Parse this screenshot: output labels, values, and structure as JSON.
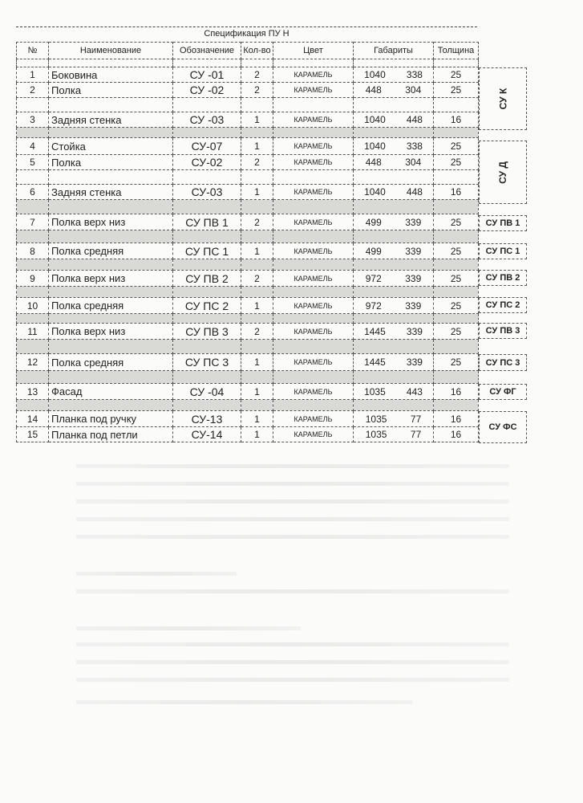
{
  "title": "Спецификация ПУ Н",
  "headers": [
    "№",
    "Наименование",
    "Обозначение",
    "Кол-во",
    "Цвет",
    "Габариты",
    "Толщина"
  ],
  "rows": [
    {
      "kind": "blank"
    },
    {
      "kind": "item",
      "n": "1",
      "name": "Боковина",
      "code": "СУ -01",
      "qty": "2",
      "color": "КАРАМЕЛЬ",
      "w": "1040",
      "h": "338",
      "t": "25"
    },
    {
      "kind": "item",
      "n": "2",
      "name": "Полка",
      "code": "СУ -02",
      "qty": "2",
      "color": "КАРАМЕЛЬ",
      "w": "448",
      "h": "304",
      "t": "25"
    },
    {
      "kind": "blank"
    },
    {
      "kind": "item",
      "n": "3",
      "name": "Задняя стенка",
      "code": "СУ -03",
      "qty": "1",
      "color": "КАРАМЕЛЬ",
      "w": "1040",
      "h": "448",
      "t": "16"
    },
    {
      "kind": "gap"
    },
    {
      "kind": "item",
      "n": "4",
      "name": "Стойка",
      "code": "СУ-07",
      "qty": "1",
      "color": "КАРАМЕЛЬ",
      "w": "1040",
      "h": "338",
      "t": "25"
    },
    {
      "kind": "item",
      "n": "5",
      "name": "Полка",
      "code": "СУ-02",
      "qty": "2",
      "color": "КАРАМЕЛЬ",
      "w": "448",
      "h": "304",
      "t": "25"
    },
    {
      "kind": "blank"
    },
    {
      "kind": "item",
      "n": "6",
      "name": "Задняя стенка",
      "code": "СУ-03",
      "qty": "1",
      "color": "КАРАМЕЛЬ",
      "w": "1040",
      "h": "448",
      "t": "16"
    },
    {
      "kind": "gap"
    },
    {
      "kind": "item",
      "n": "7",
      "name": "Полка верх низ",
      "code": "СУ ПВ 1",
      "qty": "2",
      "color": "КАРАМЕЛЬ",
      "w": "499",
      "h": "339",
      "t": "25"
    },
    {
      "kind": "gap"
    },
    {
      "kind": "item",
      "n": "8",
      "name": "Полка средняя",
      "code": "СУ ПС 1",
      "qty": "1",
      "color": "КАРАМЕЛЬ",
      "w": "499",
      "h": "339",
      "t": "25"
    },
    {
      "kind": "gap"
    },
    {
      "kind": "item",
      "n": "9",
      "name": "Полка верх низ",
      "code": "СУ ПВ 2",
      "qty": "2",
      "color": "КАРАМЕЛЬ",
      "w": "972",
      "h": "339",
      "t": "25"
    },
    {
      "kind": "gap"
    },
    {
      "kind": "item",
      "n": "10",
      "name": "Полка средняя",
      "code": "СУ ПС 2",
      "qty": "1",
      "color": "КАРАМЕЛЬ",
      "w": "972",
      "h": "339",
      "t": "25"
    },
    {
      "kind": "gap"
    },
    {
      "kind": "item",
      "n": "11",
      "name": "Полка верх низ",
      "code": "СУ ПВ 3",
      "qty": "2",
      "color": "КАРАМЕЛЬ",
      "w": "1445",
      "h": "339",
      "t": "25"
    },
    {
      "kind": "gap"
    },
    {
      "kind": "item",
      "n": "12",
      "name": "Полка средняя",
      "code": "СУ ПС 3",
      "qty": "1",
      "color": "КАРАМЕЛЬ",
      "w": "1445",
      "h": "339",
      "t": "25"
    },
    {
      "kind": "gap"
    },
    {
      "kind": "item",
      "n": "13",
      "name": "Фасад",
      "code": "СУ -04",
      "qty": "1",
      "color": "КАРАМЕЛЬ",
      "w": "1035",
      "h": "443",
      "t": "16"
    },
    {
      "kind": "gap"
    },
    {
      "kind": "item",
      "n": "14",
      "name": "Планка под ручку",
      "code": "СУ-13",
      "qty": "1",
      "color": "КАРАМЕЛЬ",
      "w": "1035",
      "h": "77",
      "t": "16"
    },
    {
      "kind": "item",
      "n": "15",
      "name": "Планка под петли",
      "code": "СУ-14",
      "qty": "1",
      "color": "КАРАМЕЛЬ",
      "w": "1035",
      "h": "77",
      "t": "16"
    }
  ],
  "groups": [
    {
      "label": "СУ К",
      "vertical": true
    },
    {
      "label": "СУ Д",
      "vertical": true
    },
    {
      "label": "СУ ПВ 1"
    },
    {
      "label": "СУ ПС 1"
    },
    {
      "label": "СУ ПВ  2"
    },
    {
      "label": "СУ  ПС 2"
    },
    {
      "label": "СУ ПВ 3"
    },
    {
      "label": "СУ ПС 3"
    },
    {
      "label": "СУ ФГ"
    },
    {
      "label": "СУ ФС"
    }
  ]
}
